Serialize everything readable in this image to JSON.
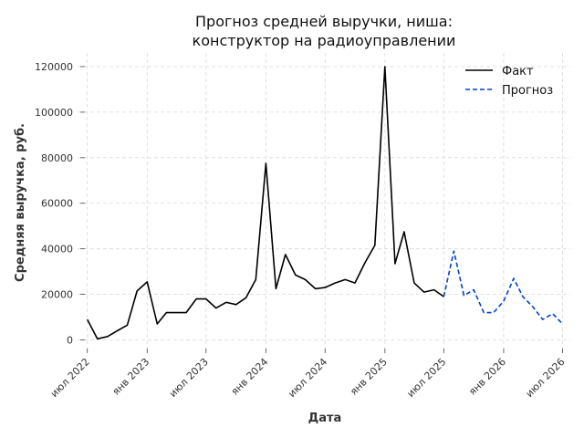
{
  "chart_data": {
    "type": "line",
    "title": [
      "Прогноз средней выручки, ниша:",
      "конструктор на радиоуправлении"
    ],
    "xlabel": "Дата",
    "ylabel": "Средняя выручка, руб.",
    "ylim": [
      -5000,
      126000
    ],
    "xlim": [
      "2022-06-01",
      "2026-07-25"
    ],
    "grid": true,
    "legend_position": "top-right",
    "y_ticks": [
      0,
      20000,
      40000,
      60000,
      80000,
      100000,
      120000
    ],
    "y_tick_labels": [
      "0",
      "20000",
      "40000",
      "60000",
      "80000",
      "100000",
      "120000"
    ],
    "x_ticks": [
      "2022-07-01",
      "2023-01-01",
      "2023-07-01",
      "2024-01-01",
      "2024-07-01",
      "2025-01-01",
      "2025-07-01",
      "2026-01-01",
      "2026-07-01"
    ],
    "x_tick_labels": [
      "июл 2022",
      "янв 2023",
      "июл 2023",
      "янв 2024",
      "июл 2024",
      "янв 2025",
      "июл 2025",
      "янв 2026",
      "июл 2026"
    ],
    "series": [
      {
        "name": "Факт",
        "color": "#000000",
        "style": "solid",
        "x": [
          "2022-07-01",
          "2022-08-01",
          "2022-09-01",
          "2022-10-01",
          "2022-11-01",
          "2022-12-01",
          "2023-01-01",
          "2023-02-01",
          "2023-03-01",
          "2023-04-01",
          "2023-05-01",
          "2023-06-01",
          "2023-07-01",
          "2023-08-01",
          "2023-09-01",
          "2023-10-01",
          "2023-11-01",
          "2023-12-01",
          "2024-01-01",
          "2024-02-01",
          "2024-03-01",
          "2024-04-01",
          "2024-05-01",
          "2024-06-01",
          "2024-07-01",
          "2024-08-01",
          "2024-09-01",
          "2024-10-01",
          "2024-11-01",
          "2024-12-01",
          "2025-01-01",
          "2025-02-01",
          "2025-03-01",
          "2025-04-01",
          "2025-05-01",
          "2025-06-01",
          "2025-07-01"
        ],
        "values": [
          9000,
          500,
          1500,
          4000,
          6500,
          21500,
          25500,
          7000,
          12000,
          12000,
          12000,
          18000,
          18000,
          14000,
          16500,
          15500,
          18500,
          26500,
          77500,
          22500,
          37500,
          28500,
          26500,
          22500,
          23000,
          25000,
          26500,
          25000,
          34000,
          41500,
          120000,
          33500,
          47500,
          25000,
          21000,
          22000,
          19000
        ]
      },
      {
        "name": "Прогноз",
        "color": "#0042c7",
        "style": "dashed",
        "x": [
          "2025-07-01",
          "2025-08-01",
          "2025-09-01",
          "2025-10-01",
          "2025-11-01",
          "2025-12-01",
          "2026-01-01",
          "2026-02-01",
          "2026-03-01",
          "2026-04-01",
          "2026-05-01",
          "2026-06-01",
          "2026-07-01"
        ],
        "values": [
          19000,
          39000,
          19500,
          22000,
          12000,
          12000,
          17000,
          27000,
          19000,
          14500,
          9000,
          11500,
          7000
        ]
      }
    ]
  }
}
